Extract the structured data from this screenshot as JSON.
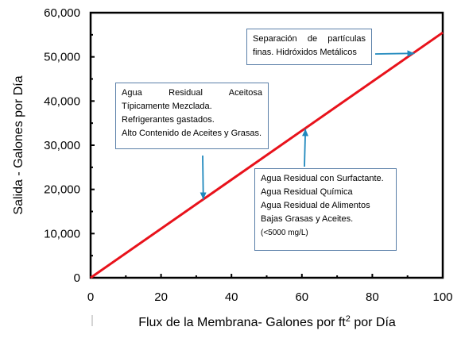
{
  "chart_data": {
    "type": "line",
    "xlabel_prefix": "Flux de la Membrana- Galones por ft",
    "xlabel_sup": "2",
    "xlabel_suffix": " por Día",
    "ylabel": "Salida - Galones por Día",
    "xlim": [
      0,
      100
    ],
    "ylim": [
      0,
      60000
    ],
    "x_ticks": [
      0,
      20,
      40,
      60,
      80,
      100
    ],
    "x_tick_labels": [
      "0",
      "20",
      "40",
      "60",
      "80",
      "100"
    ],
    "y_ticks": [
      0,
      10000,
      20000,
      30000,
      40000,
      50000,
      60000
    ],
    "y_tick_labels": [
      "0",
      "10,000",
      "20,000",
      "30,000",
      "40,000",
      "50,000",
      "60,000"
    ],
    "grid": false,
    "series": [
      {
        "x": [
          0,
          100
        ],
        "y": [
          0,
          55500
        ],
        "color": "#e8121b"
      }
    ],
    "annotations": [
      {
        "lines": [
          "Separación de partículas",
          "finas. Hidróxidos Metálicos"
        ],
        "arrow_target": [
          92,
          50800
        ]
      },
      {
        "lines": [
          "Agua Residual Aceitosa",
          "Típicamente Mezclada.",
          "Refrigerantes gastados.",
          "Alto Contenido de Aceites y Grasas."
        ],
        "arrow_target": [
          32,
          17700
        ]
      },
      {
        "lines": [
          "Agua Residual con Surfactante.",
          "Agua Residual Química",
          "Agua Residual de Alimentos",
          "Bajas Grasas y Aceites.",
          "(<5000 mg/L)"
        ],
        "arrow_target": [
          61,
          33700
        ]
      }
    ],
    "arrow_color": "#1f88bd"
  }
}
